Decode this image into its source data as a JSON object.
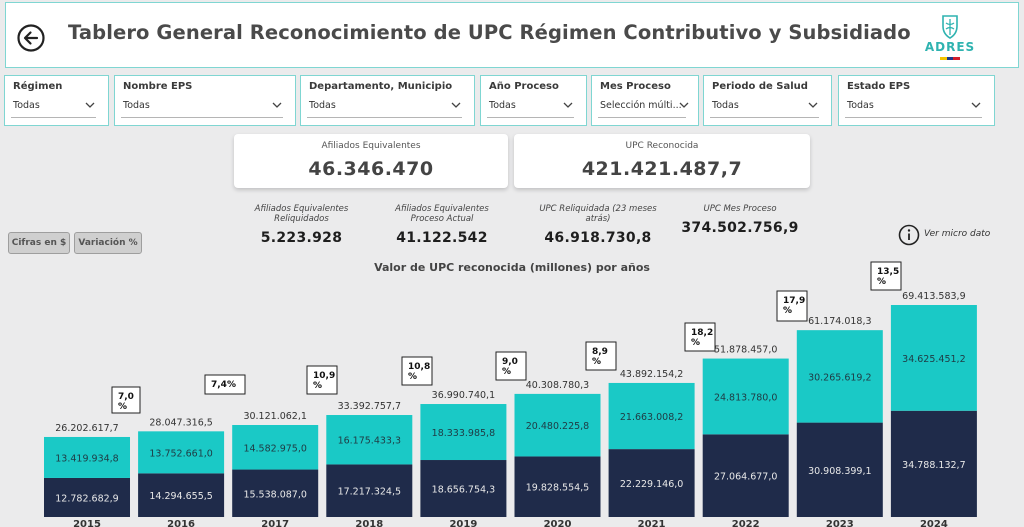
{
  "header": {
    "title": "Tablero General Reconocimiento de UPC Régimen Contributivo y Subsidiado",
    "logo_text": "ADRES"
  },
  "filters": [
    {
      "label": "Régimen",
      "value": "Todas"
    },
    {
      "label": "Nombre EPS",
      "value": "Todas"
    },
    {
      "label": "Departamento, Municipio",
      "value": "Todas"
    },
    {
      "label": "Año Proceso",
      "value": "Todas"
    },
    {
      "label": "Mes Proceso",
      "value": "Selección múlti..."
    },
    {
      "label": "Periodo de Salud",
      "value": "Todas"
    },
    {
      "label": "Estado EPS",
      "value": "Todas"
    }
  ],
  "kpis": {
    "afiliados": {
      "label": "Afiliados Equivalentes",
      "value": "46.346.470",
      "sub1": {
        "label": "Afiliados Equivalentes Reliquidados",
        "value": "5.223.928"
      },
      "sub2": {
        "label": "Afiliados Equivalentes Proceso Actual",
        "value": "41.122.542"
      }
    },
    "upc": {
      "label": "UPC Reconocida",
      "value": "421.421.487,7",
      "sub1": {
        "label": "UPC Reliquidada (23 meses atrás)",
        "value": "46.918.730,8"
      },
      "sub2": {
        "label": "UPC Mes Proceso",
        "value": "374.502.756,9"
      }
    }
  },
  "toggles": {
    "cifras": "Cifras en $",
    "variacion": "Variación %"
  },
  "info_link": "Ver micro dato",
  "chart_data": {
    "type": "bar",
    "stacked": true,
    "title": "Valor de UPC reconocida (millones) por años",
    "categories": [
      "2015",
      "2016",
      "2017",
      "2018",
      "2019",
      "2020",
      "2021",
      "2022",
      "2023",
      "2024"
    ],
    "series": [
      {
        "name": "",
        "color": "#1f2b4a",
        "values": [
          12782682.9,
          14294655.5,
          15538087.0,
          17217324.5,
          18656754.3,
          19828554.5,
          22229146.0,
          27064677.0,
          30908399.1,
          34788132.7
        ],
        "labels": [
          "12.782.682,9",
          "14.294.655,5",
          "15.538.087,0",
          "17.217.324,5",
          "18.656.754,3",
          "19.828.554,5",
          "22.229.146,0",
          "27.064.677,0",
          "30.908.399,1",
          "34.788.132,7"
        ]
      },
      {
        "name": "",
        "color": "#1ac9c6",
        "values": [
          13419934.8,
          13752661.0,
          14582975.0,
          16175433.3,
          18333985.8,
          20480225.8,
          21663008.2,
          24813780.0,
          30265619.2,
          34625451.2
        ],
        "labels": [
          "13.419.934,8",
          "13.752.661,0",
          "14.582.975,0",
          "16.175.433,3",
          "18.333.985,8",
          "20.480.225,8",
          "21.663.008,2",
          "24.813.780,0",
          "30.265.619,2",
          "34.625.451,2"
        ]
      }
    ],
    "totals": [
      26202617.7,
      28047316.5,
      30121062.1,
      33392757.7,
      36990740.1,
      40308780.3,
      43892154.2,
      51878457.0,
      61174018.3,
      69413583.9
    ],
    "total_labels": [
      "26.202.617,7",
      "28.047.316,5",
      "30.121.062,1",
      "33.392.757,7",
      "36.990.740,1",
      "40.308.780,3",
      "43.892.154,2",
      "51.878.457,0",
      "61.174.018,3",
      "69.413.583,9"
    ],
    "variations": [
      "7,0\n%",
      "7,4%",
      "10,9\n%",
      "10,8\n%",
      "9,0\n%",
      "8,9\n%",
      "18,2\n%",
      "17,9\n%",
      "13,5\n%"
    ],
    "colors": {
      "dark": "#1f2b4a",
      "teal": "#1ac9c6"
    }
  }
}
